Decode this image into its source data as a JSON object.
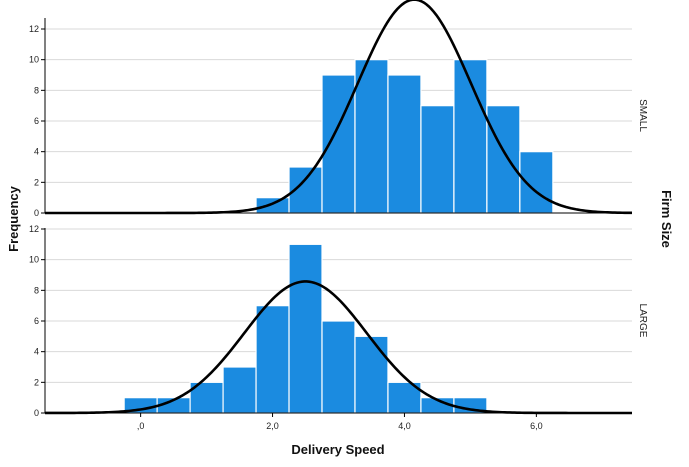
{
  "chart_data": {
    "type": "bar",
    "xlabel": "Delivery Speed",
    "ylabel": "Frequency",
    "facet_label": "Firm Size",
    "x_range": [
      -1.45,
      7.45
    ],
    "x_ticks": [
      0,
      2,
      4,
      6
    ],
    "x_tick_labels": [
      ",0",
      "2,0",
      "4,0",
      "6,0"
    ],
    "y_range": [
      0,
      12
    ],
    "y_ticks": [
      0,
      2,
      4,
      6,
      8,
      10,
      12
    ],
    "bin_width": 0.5,
    "colors": {
      "bar": "#1b8be0",
      "bar_edge": "#ffffff",
      "curve": "#000000",
      "grid": "#d9d9d9",
      "axis": "#000000"
    },
    "panels": [
      {
        "label": "SMALL",
        "bins": [
          {
            "start": 1.75,
            "count": 1
          },
          {
            "start": 2.25,
            "count": 3
          },
          {
            "start": 2.75,
            "count": 9
          },
          {
            "start": 3.25,
            "count": 10
          },
          {
            "start": 3.75,
            "count": 9
          },
          {
            "start": 4.25,
            "count": 7
          },
          {
            "start": 4.75,
            "count": 10
          },
          {
            "start": 5.25,
            "count": 7
          },
          {
            "start": 5.75,
            "count": 4
          }
        ],
        "normal_curve": {
          "mean": 4.15,
          "sd": 0.86,
          "n": 60
        }
      },
      {
        "label": "LARGE",
        "bins": [
          {
            "start": -0.25,
            "count": 1
          },
          {
            "start": 0.25,
            "count": 1
          },
          {
            "start": 0.75,
            "count": 2
          },
          {
            "start": 1.25,
            "count": 3
          },
          {
            "start": 1.75,
            "count": 7
          },
          {
            "start": 2.25,
            "count": 11
          },
          {
            "start": 2.75,
            "count": 6
          },
          {
            "start": 3.25,
            "count": 5
          },
          {
            "start": 3.75,
            "count": 2
          },
          {
            "start": 4.25,
            "count": 1
          },
          {
            "start": 4.75,
            "count": 1
          }
        ],
        "normal_curve": {
          "mean": 2.5,
          "sd": 0.93,
          "n": 40
        }
      }
    ]
  }
}
